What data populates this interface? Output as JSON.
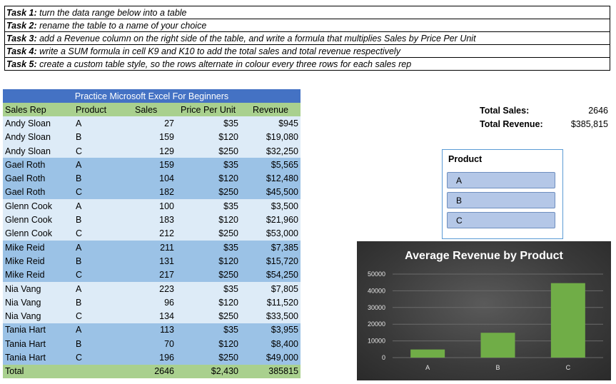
{
  "tasks": [
    {
      "label": "Task 1:",
      "text": "turn the data range below into a table"
    },
    {
      "label": "Task 2:",
      "text": "rename the table to a name of your choice"
    },
    {
      "label": "Task 3:",
      "text": "add a Revenue column on the right side of the table, and write a formula that multiplies Sales by Price Per Unit"
    },
    {
      "label": "Task 4:",
      "text": "write a SUM formula in cell K9 and K10 to add the total sales and total revenue respectively"
    },
    {
      "label": "Task 5:",
      "text": "create a custom table style, so the rows alternate in colour every three rows for each sales rep"
    }
  ],
  "table": {
    "title": "Practice Microsoft Excel For Beginners",
    "headers": [
      "Sales Rep",
      "Product",
      "Sales",
      "Price Per Unit",
      "Revenue"
    ],
    "rows": [
      [
        "Andy Sloan",
        "A",
        "27",
        "$35",
        "$945"
      ],
      [
        "Andy Sloan",
        "B",
        "159",
        "$120",
        "$19,080"
      ],
      [
        "Andy Sloan",
        "C",
        "129",
        "$250",
        "$32,250"
      ],
      [
        "Gael Roth",
        "A",
        "159",
        "$35",
        "$5,565"
      ],
      [
        "Gael Roth",
        "B",
        "104",
        "$120",
        "$12,480"
      ],
      [
        "Gael Roth",
        "C",
        "182",
        "$250",
        "$45,500"
      ],
      [
        "Glenn Cook",
        "A",
        "100",
        "$35",
        "$3,500"
      ],
      [
        "Glenn Cook",
        "B",
        "183",
        "$120",
        "$21,960"
      ],
      [
        "Glenn Cook",
        "C",
        "212",
        "$250",
        "$53,000"
      ],
      [
        "Mike Reid",
        "A",
        "211",
        "$35",
        "$7,385"
      ],
      [
        "Mike Reid",
        "B",
        "131",
        "$120",
        "$15,720"
      ],
      [
        "Mike Reid",
        "C",
        "217",
        "$250",
        "$54,250"
      ],
      [
        "Nia Vang",
        "A",
        "223",
        "$35",
        "$7,805"
      ],
      [
        "Nia Vang",
        "B",
        "96",
        "$120",
        "$11,520"
      ],
      [
        "Nia Vang",
        "C",
        "134",
        "$250",
        "$33,500"
      ],
      [
        "Tania Hart",
        "A",
        "113",
        "$35",
        "$3,955"
      ],
      [
        "Tania Hart",
        "B",
        "70",
        "$120",
        "$8,400"
      ],
      [
        "Tania Hart",
        "C",
        "196",
        "$250",
        "$49,000"
      ]
    ],
    "total": [
      "Total",
      "",
      "2646",
      "$2,430",
      "385815"
    ]
  },
  "summary": {
    "sales_label": "Total Sales:",
    "sales_value": "2646",
    "revenue_label": "Total Revenue:",
    "revenue_value": "$385,815"
  },
  "slicer": {
    "header": "Product",
    "items": [
      "A",
      "B",
      "C"
    ]
  },
  "colors": {
    "title_blue": "#4472c4",
    "header_green": "#a9d08e",
    "band_light": "#ddebf7",
    "band_dark": "#9bc2e6",
    "bar_green": "#70ad47"
  },
  "chart_data": {
    "type": "bar",
    "title": "Average Revenue by Product",
    "categories": [
      "A",
      "B",
      "C"
    ],
    "values": [
      4859,
      14860,
      44583
    ],
    "yticks": [
      0,
      10000,
      20000,
      30000,
      40000,
      50000
    ],
    "ylim": [
      0,
      50000
    ],
    "xlabel": "",
    "ylabel": "",
    "grid": true
  }
}
